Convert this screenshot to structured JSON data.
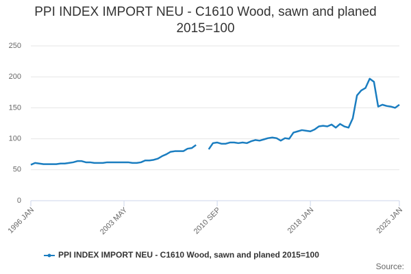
{
  "chart_data": {
    "type": "line",
    "title": "PPI INDEX IMPORT NEU - C1610 Wood, sawn and planed 2015=100",
    "source": "Source:",
    "categories": [
      "1996 JAN",
      null,
      null,
      null,
      null,
      null,
      null,
      null,
      null,
      null,
      null,
      null,
      null,
      null,
      null,
      null,
      null,
      null,
      null,
      null,
      null,
      null,
      "2003 MAY",
      null,
      null,
      null,
      null,
      null,
      null,
      null,
      null,
      null,
      null,
      null,
      null,
      null,
      null,
      null,
      null,
      null,
      null,
      null,
      null,
      null,
      "2010 SEP",
      null,
      null,
      null,
      null,
      null,
      null,
      null,
      null,
      null,
      null,
      null,
      null,
      null,
      null,
      null,
      null,
      null,
      null,
      null,
      null,
      null,
      "2018 JAN",
      null,
      null,
      null,
      null,
      null,
      null,
      null,
      null,
      null,
      null,
      null,
      null,
      null,
      null,
      null,
      null,
      null,
      null,
      null,
      null,
      "2025 JAN"
    ],
    "series": [
      {
        "name": "PPI INDEX IMPORT NEU - C1610 Wood, sawn and planed 2015=100",
        "color": "#1a7dc0",
        "values": [
          58,
          61,
          60,
          59,
          59,
          59,
          59,
          60,
          60,
          61,
          62,
          64,
          64,
          62,
          62,
          61,
          61,
          61,
          62,
          62,
          62,
          62,
          62,
          62,
          61,
          61,
          62,
          65,
          65,
          66,
          68,
          72,
          75,
          79,
          80,
          80,
          80,
          84,
          85,
          90,
          null,
          null,
          83,
          93,
          94,
          92,
          92,
          94,
          94,
          93,
          94,
          93,
          96,
          98,
          97,
          99,
          101,
          102,
          101,
          97,
          101,
          100,
          110,
          112,
          114,
          113,
          112,
          115,
          120,
          121,
          120,
          123,
          118,
          124,
          120,
          118,
          133,
          170,
          178,
          182,
          197,
          192,
          152,
          155,
          153,
          152,
          150,
          155
        ]
      }
    ],
    "ylim": [
      0,
      250
    ],
    "yticks": [
      0,
      50,
      100,
      150,
      200,
      250
    ],
    "grid": true
  }
}
